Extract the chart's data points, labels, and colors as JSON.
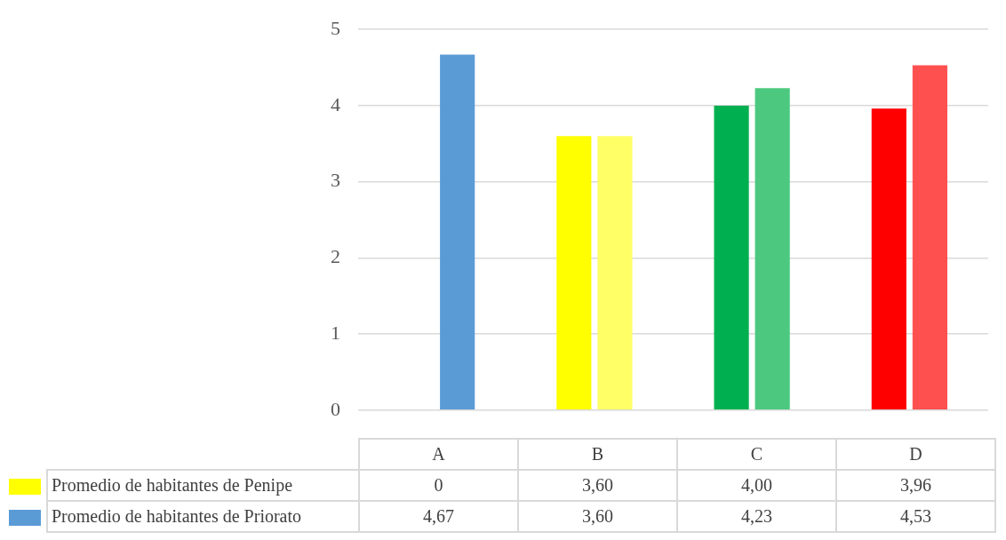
{
  "chart_data": {
    "type": "bar",
    "categories": [
      "A",
      "B",
      "C",
      "D"
    ],
    "series": [
      {
        "name": "Promedio de habitantes de Penipe",
        "colors": [
          "#2e75b6",
          "#ffff00",
          "#00b050",
          "#ff0000"
        ],
        "values": [
          0,
          3.6,
          4.0,
          3.96
        ],
        "value_labels": [
          "0",
          "3,60",
          "4,00",
          "3,96"
        ]
      },
      {
        "name": "Promedio de habitantes de Priorato",
        "colors": [
          "#5b9bd5",
          "#ffff66",
          "#4cc97f",
          "#ff5050"
        ],
        "values": [
          4.67,
          3.6,
          4.23,
          4.53
        ],
        "value_labels": [
          "4,67",
          "3,60",
          "4,23",
          "4,53"
        ]
      }
    ],
    "ylim": [
      0,
      5
    ],
    "yticks": [
      0,
      1,
      2,
      3,
      4,
      5
    ],
    "grid": "y",
    "legend": "bottom"
  }
}
